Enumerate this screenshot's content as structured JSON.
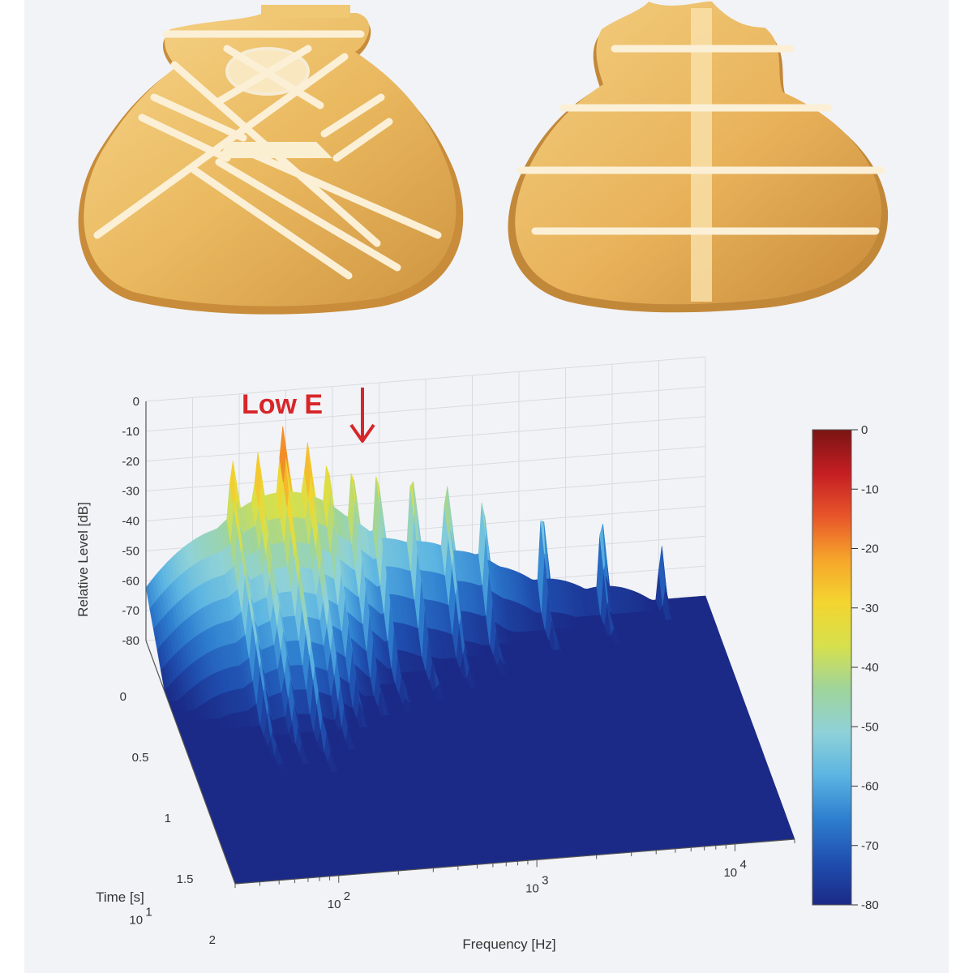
{
  "colors": {
    "wood_light": "#f2c977",
    "wood_mid": "#e0a94e",
    "wood_dark": "#b98437",
    "annotation": "#d7262a",
    "colormap": [
      "#1b2a86",
      "#1f4fb0",
      "#2e7fcf",
      "#5cb5e2",
      "#8fd2d8",
      "#9fd49a",
      "#d6e04c",
      "#f3d530",
      "#f6a52a",
      "#e8552a",
      "#c41e23",
      "#7a1414"
    ]
  },
  "illustrations": {
    "left_label": "",
    "right_label": ""
  },
  "chart_data": {
    "type": "surface",
    "title": "",
    "annotation": {
      "text": "Low E",
      "arrow": "down",
      "frequency_hz": 82
    },
    "xlabel": "Frequency [Hz]",
    "ylabel": "Time [s]",
    "zlabel": "Relative Level [dB]",
    "x_scale": "log",
    "xlim": [
      30,
      20000
    ],
    "ylim": [
      0,
      2
    ],
    "zlim": [
      -80,
      0
    ],
    "x_ticks": [
      {
        "exp": "1",
        "label": "10"
      },
      {
        "exp": "2",
        "label": "10"
      },
      {
        "exp": "3",
        "label": "10"
      },
      {
        "exp": "4",
        "label": "10"
      }
    ],
    "y_ticks": [
      "0",
      "0.5",
      "1",
      "1.5",
      "2"
    ],
    "z_ticks": [
      "0",
      "-10",
      "-20",
      "-30",
      "-40",
      "-50",
      "-60",
      "-70",
      "-80"
    ],
    "colorbar": {
      "ticks": [
        "0",
        "-10",
        "-20",
        "-30",
        "-40",
        "-50",
        "-60",
        "-70",
        "-80"
      ],
      "range": [
        -80,
        0
      ]
    },
    "grid": true,
    "peaks_at_time_0": [
      {
        "frequency_hz": 82,
        "level_db": -22
      },
      {
        "frequency_hz": 110,
        "level_db": -20
      },
      {
        "frequency_hz": 147,
        "level_db": -12
      },
      {
        "frequency_hz": 196,
        "level_db": -18
      },
      {
        "frequency_hz": 247,
        "level_db": -25
      },
      {
        "frequency_hz": 330,
        "level_db": -28
      },
      {
        "frequency_hz": 440,
        "level_db": -30
      },
      {
        "frequency_hz": 660,
        "level_db": -32
      },
      {
        "frequency_hz": 990,
        "level_db": -36
      },
      {
        "frequency_hz": 1500,
        "level_db": -42
      },
      {
        "frequency_hz": 3000,
        "level_db": -48
      },
      {
        "frequency_hz": 6000,
        "level_db": -52
      },
      {
        "frequency_hz": 12000,
        "level_db": -62
      }
    ],
    "low_frequency_body_at_time_0": [
      {
        "frequency_hz": 30,
        "level_db": -65
      },
      {
        "frequency_hz": 45,
        "level_db": -52
      },
      {
        "frequency_hz": 60,
        "level_db": -58
      }
    ]
  }
}
